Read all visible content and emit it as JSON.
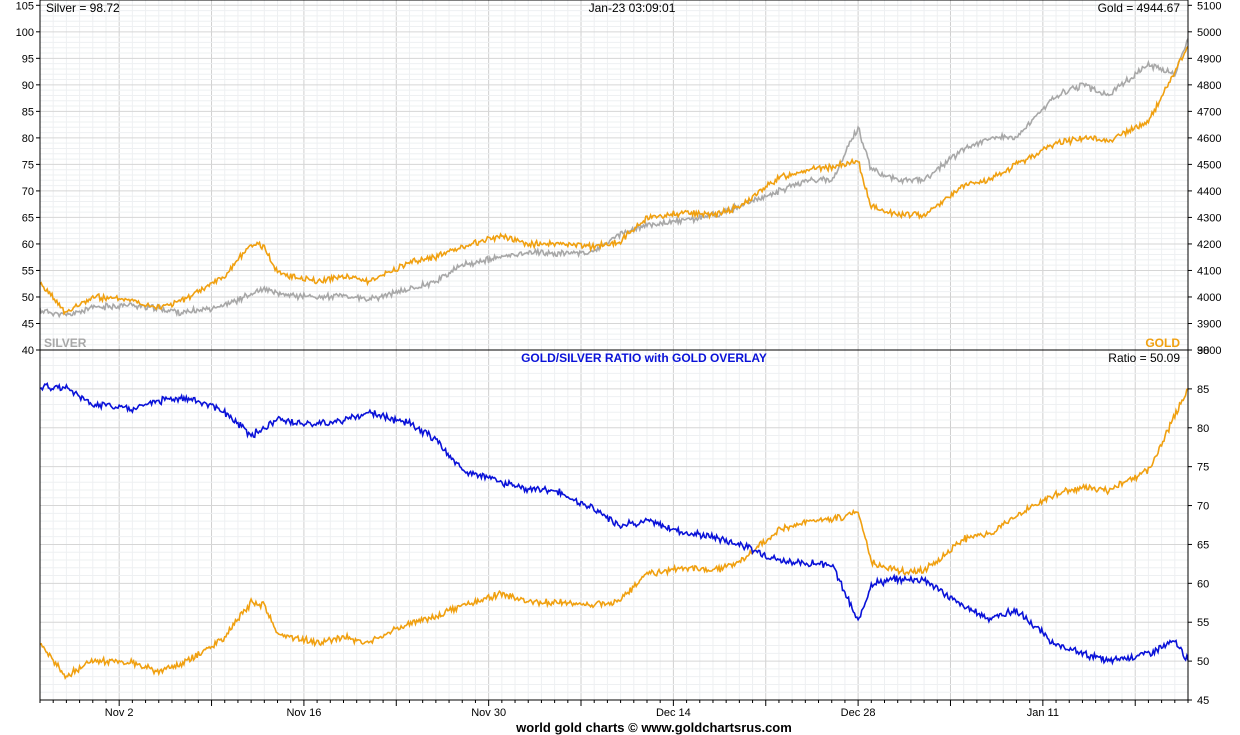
{
  "colors": {
    "gold": "#f0a010",
    "silver": "#a8a8a8",
    "ratio": "#0a12d8",
    "grid": "#d8d8d8",
    "frame": "#000000"
  },
  "header": {
    "silver_readout": "Silver = 98.72",
    "timestamp": "Jan-23  03:09:01",
    "gold_readout": "Gold = 4944.67"
  },
  "footer": {
    "credit": "world gold charts © www.goldchartsrus.com"
  },
  "chart_data": [
    {
      "type": "line",
      "x_type": "date",
      "xticks": [
        "Nov 2",
        "Nov 16",
        "Nov 30",
        "Dec 14",
        "Dec 28",
        "Jan 11"
      ],
      "xlim": [
        "2025-10-27",
        "2026-01-22"
      ],
      "y_left": {
        "ticks": [
          "40",
          "45",
          "50",
          "55",
          "60",
          "65",
          "70",
          "75",
          "80",
          "85",
          "90",
          "95",
          "100",
          "105"
        ],
        "lim": [
          40,
          106
        ]
      },
      "y_right": {
        "ticks": [
          "3800",
          "3900",
          "4000",
          "4100",
          "4200",
          "4300",
          "4400",
          "4500",
          "4600",
          "4700",
          "4800",
          "4900",
          "5000",
          "5100"
        ],
        "lim": [
          3800,
          5120
        ]
      },
      "grid": true,
      "series": [
        {
          "name": "SILVER",
          "axis": "left",
          "x": [
            "2025-10-27",
            "2025-10-29",
            "2025-10-31",
            "2025-11-03",
            "2025-11-05",
            "2025-11-07",
            "2025-11-10",
            "2025-11-12",
            "2025-11-13",
            "2025-11-14",
            "2025-11-17",
            "2025-11-19",
            "2025-11-21",
            "2025-11-24",
            "2025-11-26",
            "2025-11-28",
            "2025-12-01",
            "2025-12-03",
            "2025-12-05",
            "2025-12-08",
            "2025-12-10",
            "2025-12-12",
            "2025-12-15",
            "2025-12-17",
            "2025-12-19",
            "2025-12-22",
            "2025-12-24",
            "2025-12-26",
            "2025-12-28",
            "2025-12-29",
            "2025-12-31",
            "2026-01-02",
            "2026-01-05",
            "2026-01-07",
            "2026-01-09",
            "2026-01-12",
            "2026-01-14",
            "2026-01-16",
            "2026-01-19",
            "2026-01-21",
            "2026-01-22"
          ],
          "values": [
            47.5,
            46.5,
            48.0,
            48.5,
            47.8,
            47.0,
            48.5,
            50.5,
            51.5,
            50.5,
            50.0,
            50.2,
            49.5,
            51.5,
            53.0,
            56.0,
            57.5,
            58.5,
            58.2,
            58.5,
            62.0,
            63.5,
            64.5,
            65.5,
            67.0,
            70.0,
            72.0,
            72.0,
            82.0,
            74.0,
            72.0,
            72.0,
            78.0,
            80.0,
            80.0,
            88.0,
            90.0,
            88.0,
            94.0,
            92.0,
            98.72
          ]
        },
        {
          "name": "GOLD",
          "axis": "right",
          "x": [
            "2025-10-27",
            "2025-10-29",
            "2025-10-31",
            "2025-11-03",
            "2025-11-05",
            "2025-11-07",
            "2025-11-10",
            "2025-11-12",
            "2025-11-13",
            "2025-11-14",
            "2025-11-17",
            "2025-11-19",
            "2025-11-21",
            "2025-11-24",
            "2025-11-26",
            "2025-11-28",
            "2025-12-01",
            "2025-12-03",
            "2025-12-05",
            "2025-12-08",
            "2025-12-10",
            "2025-12-12",
            "2025-12-15",
            "2025-12-17",
            "2025-12-19",
            "2025-12-22",
            "2025-12-24",
            "2025-12-26",
            "2025-12-28",
            "2025-12-29",
            "2025-12-31",
            "2026-01-02",
            "2026-01-05",
            "2026-01-07",
            "2026-01-09",
            "2026-01-12",
            "2026-01-14",
            "2026-01-16",
            "2026-01-19",
            "2026-01-21",
            "2026-01-22"
          ],
          "values": [
            4050,
            3940,
            4000,
            3990,
            3960,
            3990,
            4080,
            4200,
            4190,
            4090,
            4060,
            4080,
            4060,
            4130,
            4150,
            4190,
            4230,
            4200,
            4200,
            4190,
            4210,
            4300,
            4320,
            4310,
            4340,
            4450,
            4480,
            4490,
            4510,
            4340,
            4310,
            4310,
            4420,
            4440,
            4500,
            4580,
            4600,
            4590,
            4660,
            4850,
            4944.67
          ]
        }
      ],
      "series_tags": {
        "left": "SILVER",
        "right": "GOLD"
      }
    },
    {
      "type": "line",
      "title": "GOLD/SILVER RATIO with GOLD OVERLAY",
      "readout": "Ratio = 50.09",
      "x_type": "date",
      "xticks": [
        "Nov 2",
        "Nov 16",
        "Nov 30",
        "Dec 14",
        "Dec 28",
        "Jan 11"
      ],
      "xlim": [
        "2025-10-27",
        "2026-01-22"
      ],
      "y_right": {
        "ticks": [
          "45",
          "50",
          "55",
          "60",
          "65",
          "70",
          "75",
          "80",
          "85",
          "90"
        ],
        "lim": [
          45,
          90
        ]
      },
      "grid": true,
      "series": [
        {
          "name": "Ratio",
          "axis": "right",
          "x": [
            "2025-10-27",
            "2025-10-29",
            "2025-10-31",
            "2025-11-03",
            "2025-11-05",
            "2025-11-07",
            "2025-11-10",
            "2025-11-12",
            "2025-11-13",
            "2025-11-14",
            "2025-11-17",
            "2025-11-19",
            "2025-11-21",
            "2025-11-24",
            "2025-11-26",
            "2025-11-28",
            "2025-12-01",
            "2025-12-03",
            "2025-12-05",
            "2025-12-08",
            "2025-12-10",
            "2025-12-12",
            "2025-12-15",
            "2025-12-17",
            "2025-12-19",
            "2025-12-22",
            "2025-12-24",
            "2025-12-26",
            "2025-12-28",
            "2025-12-29",
            "2025-12-31",
            "2026-01-02",
            "2026-01-05",
            "2026-01-07",
            "2026-01-09",
            "2026-01-12",
            "2026-01-14",
            "2026-01-16",
            "2026-01-19",
            "2026-01-21",
            "2026-01-22"
          ],
          "values": [
            85.3,
            85.0,
            83.0,
            82.5,
            83.5,
            84.0,
            82.0,
            79.0,
            80.0,
            81.0,
            80.5,
            81.0,
            82.0,
            80.5,
            78.5,
            74.5,
            73.0,
            72.0,
            72.0,
            69.5,
            67.5,
            68.0,
            66.5,
            66.0,
            65.0,
            63.0,
            62.5,
            62.5,
            55.0,
            60.0,
            60.5,
            60.5,
            57.0,
            55.5,
            56.5,
            52.0,
            51.0,
            50.0,
            51.0,
            52.5,
            50.09
          ]
        },
        {
          "name": "GOLD",
          "axis": "hidden",
          "x": [
            "2025-10-27",
            "2025-10-29",
            "2025-10-31",
            "2025-11-03",
            "2025-11-05",
            "2025-11-07",
            "2025-11-10",
            "2025-11-12",
            "2025-11-13",
            "2025-11-14",
            "2025-11-17",
            "2025-11-19",
            "2025-11-21",
            "2025-11-24",
            "2025-11-26",
            "2025-11-28",
            "2025-12-01",
            "2025-12-03",
            "2025-12-05",
            "2025-12-08",
            "2025-12-10",
            "2025-12-12",
            "2025-12-15",
            "2025-12-17",
            "2025-12-19",
            "2025-12-22",
            "2025-12-24",
            "2025-12-26",
            "2025-12-28",
            "2025-12-29",
            "2025-12-31",
            "2026-01-02",
            "2026-01-05",
            "2026-01-07",
            "2026-01-09",
            "2026-01-12",
            "2026-01-14",
            "2026-01-16",
            "2026-01-19",
            "2026-01-21",
            "2026-01-22"
          ],
          "values": [
            4050,
            3940,
            4000,
            3990,
            3960,
            3990,
            4080,
            4200,
            4190,
            4090,
            4060,
            4080,
            4060,
            4130,
            4150,
            4190,
            4230,
            4200,
            4200,
            4190,
            4210,
            4300,
            4320,
            4310,
            4340,
            4450,
            4480,
            4490,
            4510,
            4340,
            4310,
            4310,
            4420,
            4440,
            4500,
            4580,
            4600,
            4590,
            4660,
            4850,
            4944.67
          ]
        }
      ]
    }
  ]
}
